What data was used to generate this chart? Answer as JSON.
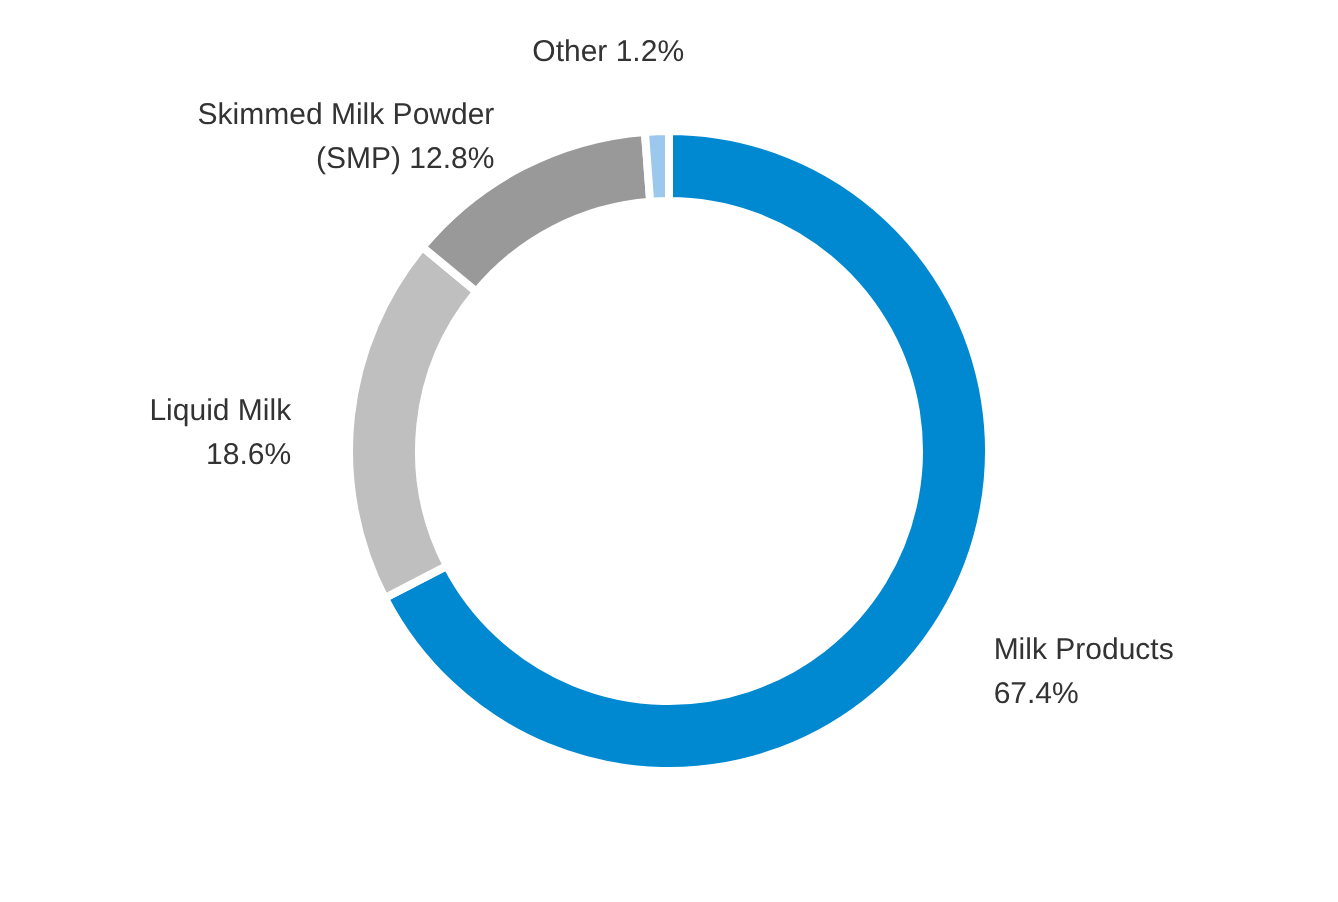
{
  "chart_data": {
    "type": "donut",
    "categories": [
      "Milk Products",
      "Liquid Milk",
      "Skimmed Milk Powder",
      "Other"
    ],
    "value_labels": [
      "67.4%",
      "18.6%",
      "(SMP) 12.8%",
      "1.2%"
    ],
    "values": [
      67.4,
      18.6,
      12.8,
      1.2
    ],
    "colors": [
      "#0089d0",
      "#bfbfbf",
      "#999999",
      "#9cc8ee"
    ],
    "legend": false
  }
}
